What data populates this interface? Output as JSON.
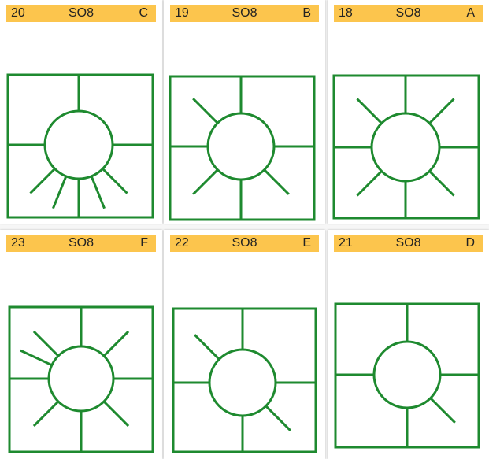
{
  "theme": {
    "header_color": "#fcc54d",
    "line_color": "#1e8a2f"
  },
  "cards": [
    {
      "number": "20",
      "code": "SO8",
      "letter": "C",
      "rays": [
        "south-west",
        "south-south-west",
        "south",
        "south-south-east",
        "south-east"
      ]
    },
    {
      "number": "19",
      "code": "SO8",
      "letter": "B",
      "rays": [
        "north-west",
        "south-west",
        "south-east"
      ]
    },
    {
      "number": "18",
      "code": "SO8",
      "letter": "A",
      "rays": [
        "north-west",
        "north-east",
        "south-west",
        "south-east"
      ]
    },
    {
      "number": "23",
      "code": "SO8",
      "letter": "F",
      "rays": [
        "north-west",
        "west-north-west",
        "north-east",
        "south-west",
        "south-east"
      ]
    },
    {
      "number": "22",
      "code": "SO8",
      "letter": "E",
      "rays": [
        "north-west",
        "south-east"
      ]
    },
    {
      "number": "21",
      "code": "SO8",
      "letter": "D",
      "rays": [
        "south-east"
      ]
    }
  ]
}
